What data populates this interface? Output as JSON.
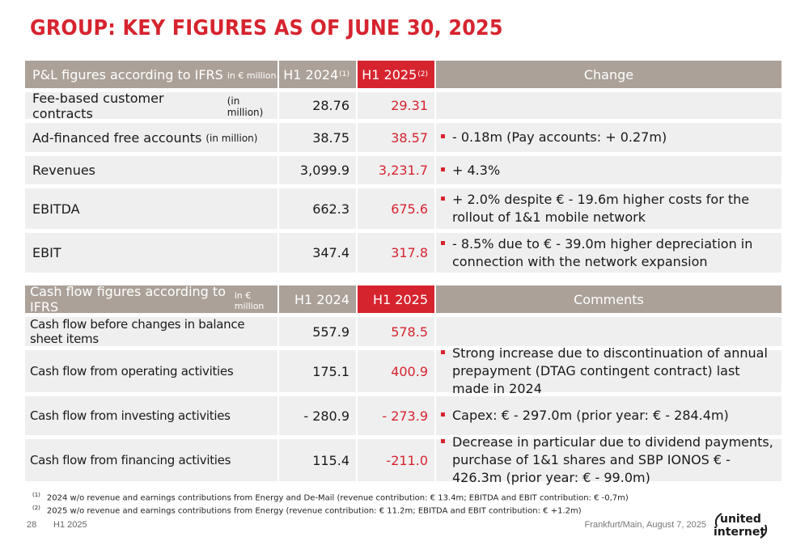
{
  "title": "GROUP: KEY FIGURES AS OF JUNE 30, 2025",
  "pl_table": {
    "header": {
      "label": "P&L figures according to IFRS",
      "unit": "in € million",
      "h1_2024": "H1 2024",
      "h1_2024_note": "(1)",
      "h1_2025": "H1 2025",
      "h1_2025_note": "(2)",
      "change": "Change"
    },
    "rows": [
      {
        "label": "Fee-based customer contracts",
        "unit": "(in million)",
        "h1_2024": "28.76",
        "h1_2025": "29.31",
        "change": ""
      },
      {
        "label": "Ad-financed free accounts",
        "unit": "(in million)",
        "h1_2024": "38.75",
        "h1_2025": "38.57",
        "change": "- 0.18m (Pay accounts: + 0.27m)"
      },
      {
        "label": "Revenues",
        "unit": "",
        "h1_2024": "3,099.9",
        "h1_2025": "3,231.7",
        "change": "+ 4.3%"
      },
      {
        "label": "EBITDA",
        "unit": "",
        "h1_2024": "662.3",
        "h1_2025": "675.6",
        "change": "+ 2.0% despite € - 19.6m higher costs for the rollout of 1&1 mobile network"
      },
      {
        "label": "EBIT",
        "unit": "",
        "h1_2024": "347.4",
        "h1_2025": "317.8",
        "change": "- 8.5% due to € - 39.0m higher depreciation in connection with the network expansion"
      }
    ]
  },
  "cf_table": {
    "header": {
      "label": "Cash flow figures according to IFRS",
      "unit": "in € million",
      "h1_2024": "H1 2024",
      "h1_2025": "H1 2025",
      "comments": "Comments"
    },
    "rows": [
      {
        "label": "Cash flow before changes in balance sheet items",
        "h1_2024": "557.9",
        "h1_2025": "578.5",
        "comment": ""
      },
      {
        "label": "Cash flow from operating activities",
        "h1_2024": "175.1",
        "h1_2025": "400.9",
        "comment": "Strong increase due to discontinuation of annual prepayment (DTAG contingent contract) last made in 2024"
      },
      {
        "label": "Cash flow from investing activities",
        "h1_2024": "- 280.9",
        "h1_2025": "- 273.9",
        "comment": "Capex: € - 297.0m (prior year: € - 284.4m)"
      },
      {
        "label": "Cash flow from financing activities",
        "h1_2024": "115.4",
        "h1_2025": "-211.0",
        "comment": "Decrease in particular due to dividend payments, purchase of 1&1 shares and SBP IONOS € - 426.3m (prior year: € - 99.0m)"
      }
    ]
  },
  "footnotes": [
    {
      "mark": "(1)",
      "text": "2024 w/o revenue and earnings contributions from Energy and De-Mail (revenue contribution: € 13.4m; EBITDA and EBIT contribution: € -0,7m)"
    },
    {
      "mark": "(2)",
      "text": "2025 w/o revenue and earnings contributions from Energy (revenue contribution: € 11.2m; EBITDA and EBIT contribution: € +1.2m)"
    }
  ],
  "footer": {
    "page_number": "28",
    "label": "H1 2025",
    "place_date": "Frankfurt/Main, August 7, 2025",
    "logo_line1": "united",
    "logo_line2": "internet"
  },
  "colors": {
    "accent": "#d6242f",
    "header_gray": "#aba198",
    "row_bg": "#efefef"
  }
}
